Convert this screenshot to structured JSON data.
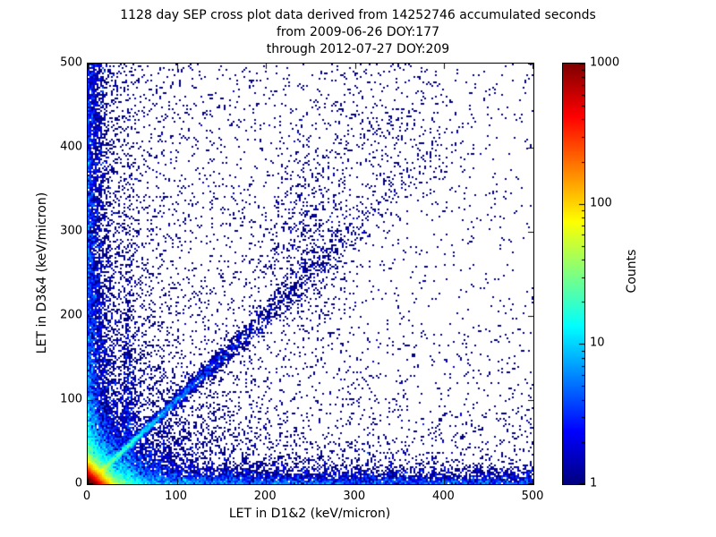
{
  "figure": {
    "background": "#ffffff",
    "text_color": "#000000",
    "frame_color": "#000000"
  },
  "chart_data": {
    "type": "heatmap",
    "title_lines": [
      "1128 day SEP cross plot data derived from 14252746 accumulated seconds",
      "from 2009-06-26 DOY:177",
      "through 2012-07-27 DOY:209"
    ],
    "duration_days": 1128,
    "accumulated_seconds": 14252746,
    "start_date": "2009-06-26",
    "start_doy": 177,
    "end_date": "2012-07-27",
    "end_doy": 209,
    "xlabel": "LET in D1&2 (keV/micron)",
    "ylabel": "LET in D3&4 (keV/micron)",
    "xlim": [
      0,
      500
    ],
    "ylim": [
      0,
      500
    ],
    "x_ticks": [
      0,
      100,
      200,
      300,
      400,
      500
    ],
    "y_ticks": [
      0,
      100,
      200,
      300,
      400,
      500
    ],
    "grid": false,
    "colormap": "jet",
    "single_count_color": "#000080",
    "colorbar": {
      "label": "Counts",
      "scale": "log",
      "min": 1,
      "max": 1000,
      "ticks": [
        1,
        10,
        100,
        1000
      ],
      "position": "right"
    },
    "seed": 20120727,
    "distributions": [
      {
        "name": "core-hotspot",
        "kind": "exp2d",
        "n": 35000,
        "mean_x": 6.5,
        "mean_y": 6.5
      },
      {
        "name": "core-halo",
        "kind": "exp2d",
        "n": 9000,
        "mean_x": 22,
        "mean_y": 22
      },
      {
        "name": "lower-left-haze",
        "kind": "exp2d",
        "n": 3000,
        "mean_x": 65,
        "mean_y": 65
      },
      {
        "name": "left-edge-band",
        "kind": "edge_left",
        "n": 5500,
        "mean_x": 9,
        "pow": 1.6
      },
      {
        "name": "bottom-edge-band",
        "kind": "edge_bottom",
        "n": 5500,
        "mean_y": 8,
        "pow": 1.4
      },
      {
        "name": "left-haze",
        "kind": "haze_x",
        "n": 2200,
        "mean_x": 110
      },
      {
        "name": "bottom-haze",
        "kind": "haze_y",
        "n": 1300,
        "mean_y": 90
      },
      {
        "name": "proton-diagonal-band",
        "kind": "diagonal",
        "n": 3800,
        "mean_t": 95,
        "spread_min": 2.5,
        "spread_frac": 0.045
      },
      {
        "name": "diagonal-blob",
        "kind": "gauss2d",
        "n": 650,
        "cx": 245,
        "cy": 295,
        "sx": 28,
        "sy": 55
      },
      {
        "name": "upper-diagonal-spray",
        "kind": "gauss2d",
        "n": 380,
        "cx": 335,
        "cy": 430,
        "sx": 45,
        "sy": 55
      },
      {
        "name": "vertical-band",
        "kind": "vertical_band",
        "n": 550,
        "cx": 46,
        "sx": 3,
        "mean_y": 140
      },
      {
        "name": "uniform-background",
        "kind": "uniform",
        "n": 1100
      }
    ]
  }
}
